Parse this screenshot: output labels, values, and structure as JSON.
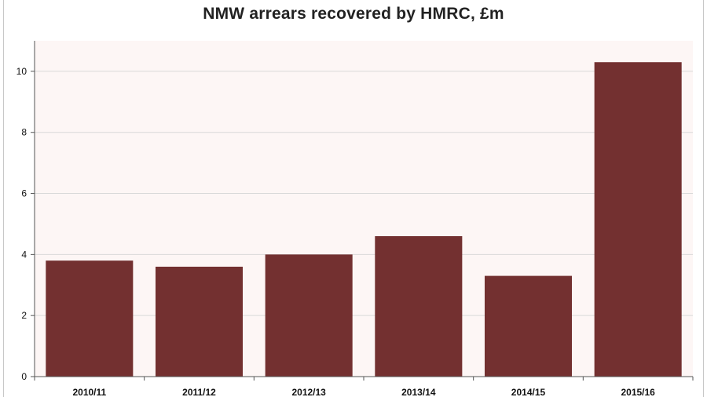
{
  "chart_data": {
    "type": "bar",
    "title": "NMW arrears recovered by HMRC, £m",
    "xlabel": "",
    "ylabel": "",
    "categories": [
      "2010/11",
      "2011/12",
      "2012/13",
      "2013/14",
      "2014/15",
      "2015/16"
    ],
    "values": [
      3.8,
      3.6,
      4.0,
      4.6,
      3.3,
      10.3
    ],
    "ylim": [
      0,
      11
    ],
    "yticks": [
      0,
      2,
      4,
      6,
      8,
      10
    ],
    "grid": "horizontal",
    "legend": "none",
    "bar_color": "#733030",
    "plot_background": "#fdf6f5"
  }
}
